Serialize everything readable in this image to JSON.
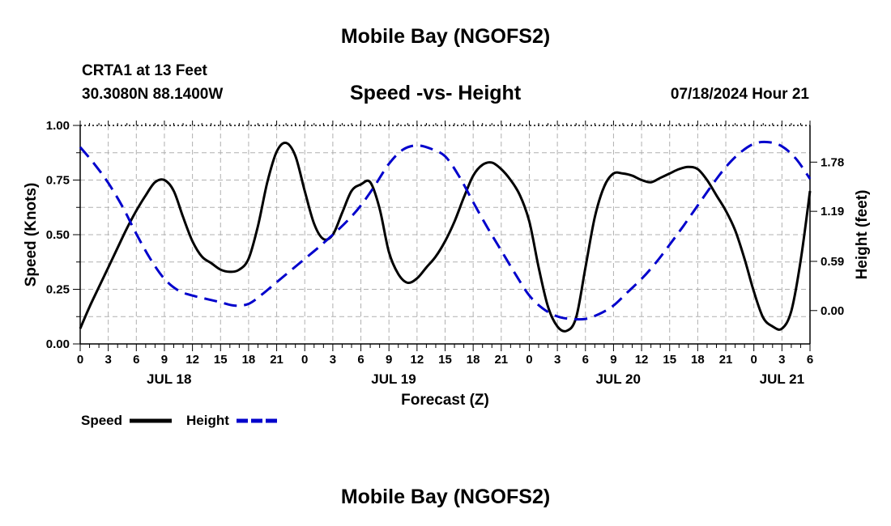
{
  "page": {
    "title": "Mobile Bay (NGOFS2)",
    "bottom_title": "Mobile Bay (NGOFS2)",
    "station_line1": "CRTA1 at 13 Feet",
    "station_line2": "30.3080N  88.1400W",
    "chart_title": "Speed -vs- Height",
    "date_hour": "07/18/2024 Hour 21"
  },
  "chart_data": {
    "type": "line",
    "title": "Speed -vs- Height",
    "xlabel": "Forecast (Z)",
    "ylabel_left": "Speed (Knots)",
    "ylabel_right": "Height (feet)",
    "x_unit": "hours from 2024-07-18 00Z",
    "xlim": [
      0,
      78
    ],
    "ylim_left": [
      0,
      1.0
    ],
    "ylim_right": [
      -0.4,
      2.22
    ],
    "grid": true,
    "x_ticks": [
      {
        "h": 0,
        "label": "0"
      },
      {
        "h": 3,
        "label": "3"
      },
      {
        "h": 6,
        "label": "6"
      },
      {
        "h": 9,
        "label": "9"
      },
      {
        "h": 12,
        "label": "12"
      },
      {
        "h": 15,
        "label": "15"
      },
      {
        "h": 18,
        "label": "18"
      },
      {
        "h": 21,
        "label": "21"
      },
      {
        "h": 24,
        "label": "0"
      },
      {
        "h": 27,
        "label": "3"
      },
      {
        "h": 30,
        "label": "6"
      },
      {
        "h": 33,
        "label": "9"
      },
      {
        "h": 36,
        "label": "12"
      },
      {
        "h": 39,
        "label": "15"
      },
      {
        "h": 42,
        "label": "18"
      },
      {
        "h": 45,
        "label": "21"
      },
      {
        "h": 48,
        "label": "0"
      },
      {
        "h": 51,
        "label": "3"
      },
      {
        "h": 54,
        "label": "6"
      },
      {
        "h": 57,
        "label": "9"
      },
      {
        "h": 60,
        "label": "12"
      },
      {
        "h": 63,
        "label": "15"
      },
      {
        "h": 66,
        "label": "18"
      },
      {
        "h": 69,
        "label": "21"
      },
      {
        "h": 72,
        "label": "0"
      },
      {
        "h": 75,
        "label": "3"
      },
      {
        "h": 78,
        "label": "6"
      }
    ],
    "date_labels": [
      {
        "h": 9.5,
        "label": "JUL 18"
      },
      {
        "h": 33.5,
        "label": "JUL 19"
      },
      {
        "h": 57.5,
        "label": "JUL 20"
      },
      {
        "h": 75,
        "label": "JUL 21"
      }
    ],
    "left_ticks": [
      {
        "v": 0.0,
        "label": "0.00"
      },
      {
        "v": 0.25,
        "label": "0.25"
      },
      {
        "v": 0.5,
        "label": "0.50"
      },
      {
        "v": 0.75,
        "label": "0.75"
      },
      {
        "v": 1.0,
        "label": "1.00"
      }
    ],
    "right_ticks": [
      {
        "v": 0.0,
        "label": "0.00"
      },
      {
        "v": 0.59,
        "label": "0.59"
      },
      {
        "v": 1.19,
        "label": "1.19"
      },
      {
        "v": 1.78,
        "label": "1.78"
      }
    ],
    "series": [
      {
        "name": "Speed",
        "axis": "left",
        "color": "#000000",
        "dash": "solid",
        "x": [
          0,
          1,
          2,
          3,
          4,
          5,
          6,
          7,
          8,
          9,
          10,
          11,
          12,
          13,
          14,
          15,
          16,
          17,
          18,
          19,
          20,
          21,
          22,
          23,
          24,
          25,
          26,
          27,
          28,
          29,
          30,
          31,
          32,
          33,
          34,
          35,
          36,
          37,
          38,
          39,
          40,
          41,
          42,
          43,
          44,
          45,
          46,
          47,
          48,
          49,
          50,
          51,
          52,
          53,
          54,
          55,
          56,
          57,
          58,
          59,
          60,
          61,
          62,
          63,
          64,
          65,
          66,
          67,
          68,
          69,
          70,
          71,
          72,
          73,
          74,
          75,
          76,
          77,
          78
        ],
        "values": [
          0.07,
          0.17,
          0.26,
          0.35,
          0.44,
          0.53,
          0.61,
          0.68,
          0.74,
          0.75,
          0.7,
          0.58,
          0.47,
          0.4,
          0.37,
          0.34,
          0.33,
          0.34,
          0.39,
          0.54,
          0.74,
          0.88,
          0.92,
          0.86,
          0.7,
          0.55,
          0.48,
          0.5,
          0.6,
          0.7,
          0.73,
          0.74,
          0.62,
          0.42,
          0.32,
          0.28,
          0.3,
          0.35,
          0.4,
          0.47,
          0.56,
          0.67,
          0.77,
          0.82,
          0.83,
          0.8,
          0.75,
          0.68,
          0.56,
          0.35,
          0.17,
          0.08,
          0.06,
          0.12,
          0.35,
          0.58,
          0.72,
          0.78,
          0.78,
          0.77,
          0.75,
          0.74,
          0.76,
          0.78,
          0.8,
          0.81,
          0.8,
          0.75,
          0.68,
          0.61,
          0.52,
          0.39,
          0.24,
          0.12,
          0.08,
          0.07,
          0.15,
          0.38,
          0.7
        ]
      },
      {
        "name": "Height",
        "axis": "right",
        "color": "#0000cc",
        "dash": "dashed",
        "x": [
          0,
          1.5,
          3,
          4.5,
          6,
          7.5,
          9,
          10.5,
          12,
          13.5,
          15,
          16.5,
          18,
          19.5,
          21,
          22.5,
          24,
          25.5,
          27,
          28.5,
          30,
          31.5,
          33,
          34.5,
          36,
          37.5,
          39,
          40.5,
          42,
          43.5,
          45,
          46.5,
          48,
          49.5,
          51,
          52.5,
          54,
          55.5,
          57,
          58.5,
          60,
          61.5,
          63,
          64.5,
          66,
          67.5,
          69,
          70.5,
          72,
          73.5,
          75,
          76.5,
          78
        ],
        "values": [
          1.96,
          1.76,
          1.53,
          1.25,
          0.92,
          0.62,
          0.38,
          0.24,
          0.18,
          0.14,
          0.1,
          0.06,
          0.08,
          0.2,
          0.34,
          0.48,
          0.62,
          0.76,
          0.91,
          1.07,
          1.26,
          1.5,
          1.76,
          1.93,
          1.98,
          1.94,
          1.85,
          1.61,
          1.3,
          1.0,
          0.72,
          0.44,
          0.18,
          0.02,
          -0.07,
          -0.1,
          -0.1,
          -0.04,
          0.06,
          0.22,
          0.38,
          0.57,
          0.79,
          1.02,
          1.26,
          1.5,
          1.72,
          1.89,
          2.0,
          2.02,
          1.97,
          1.82,
          1.58
        ]
      }
    ],
    "legend": [
      {
        "label": "Speed",
        "color": "#000000",
        "dash": "solid"
      },
      {
        "label": "Height",
        "color": "#0000cc",
        "dash": "dashed"
      }
    ],
    "legend_position": "bottom-left"
  }
}
